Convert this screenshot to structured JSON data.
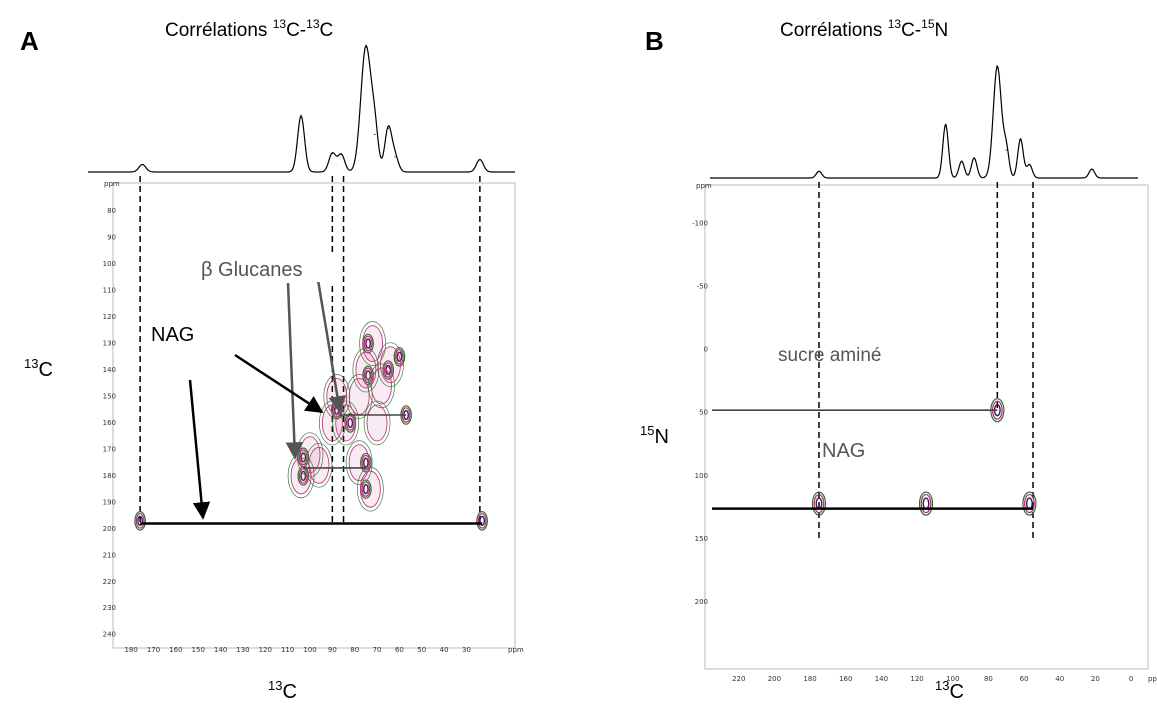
{
  "chart_data": [
    {
      "panel_letter": "A",
      "title": {
        "text": "Corrélations ",
        "sup1": "13",
        "mid": "C-",
        "sup2": "13",
        "end": "C"
      },
      "type": "heatmap",
      "xlabel": {
        "sup": "13",
        "text": "C"
      },
      "ylabel": {
        "sup": "13",
        "text": "C"
      },
      "xlim": [
        185,
        15
      ],
      "ylim": [
        72,
        242
      ],
      "x_unit": "ppm",
      "y_unit": "ppm",
      "xticks": [
        180,
        170,
        160,
        150,
        140,
        130,
        120,
        110,
        100,
        90,
        80,
        70,
        60,
        50,
        40,
        30
      ],
      "yticks": [
        80,
        90,
        100,
        110,
        120,
        130,
        140,
        150,
        160,
        170,
        180,
        190,
        200,
        210,
        220,
        230,
        240
      ],
      "projection_peaks": [
        {
          "ppm": 175,
          "height": 0.06
        },
        {
          "ppm": 104,
          "height": 0.45
        },
        {
          "ppm": 90,
          "height": 0.15
        },
        {
          "ppm": 86,
          "height": 0.14
        },
        {
          "ppm": 75,
          "height": 1.0
        },
        {
          "ppm": 71,
          "height": 0.3
        },
        {
          "ppm": 65,
          "height": 0.35
        },
        {
          "ppm": 62,
          "height": 0.12
        },
        {
          "ppm": 24,
          "height": 0.1
        }
      ],
      "cross_peaks": [
        {
          "x": 176,
          "y": 197
        },
        {
          "x": 23,
          "y": 197
        },
        {
          "x": 103,
          "y": 173
        },
        {
          "x": 103,
          "y": 180
        },
        {
          "x": 75,
          "y": 175
        },
        {
          "x": 75,
          "y": 185
        },
        {
          "x": 88,
          "y": 155
        },
        {
          "x": 82,
          "y": 160
        },
        {
          "x": 74,
          "y": 142
        },
        {
          "x": 74,
          "y": 130
        },
        {
          "x": 65,
          "y": 140
        },
        {
          "x": 60,
          "y": 135
        },
        {
          "x": 57,
          "y": 157
        }
      ],
      "connectors": [
        {
          "x": [
            176,
            23
          ],
          "y": 198,
          "weight": "bold"
        },
        {
          "x": [
            87,
            57
          ],
          "y": 157,
          "weight": "normal"
        },
        {
          "x": [
            103,
            75
          ],
          "y": 177,
          "weight": "normal"
        }
      ],
      "projection_guides": [
        176,
        90,
        85,
        24
      ],
      "annotations": [
        {
          "text": "β Glucanes"
        },
        {
          "text": "NAG"
        }
      ]
    },
    {
      "panel_letter": "B",
      "title": {
        "text": "Corrélations ",
        "sup1": "13",
        "mid": "C-",
        "sup2": "15",
        "end": "N"
      },
      "type": "heatmap",
      "xlabel": {
        "sup": "13",
        "text": "C"
      },
      "ylabel": {
        "sup": "15",
        "text": "N"
      },
      "xlim": [
        235,
        -5
      ],
      "ylim": [
        -125,
        250
      ],
      "x_unit": "ppm",
      "y_unit": "ppm",
      "xticks": [
        220,
        200,
        180,
        160,
        140,
        120,
        100,
        80,
        60,
        40,
        20,
        0
      ],
      "yticks": [
        -100,
        -50,
        0,
        50,
        100,
        150,
        200
      ],
      "projection_peaks": [
        {
          "ppm": 175,
          "height": 0.06
        },
        {
          "ppm": 104,
          "height": 0.48
        },
        {
          "ppm": 95,
          "height": 0.15
        },
        {
          "ppm": 88,
          "height": 0.18
        },
        {
          "ppm": 75,
          "height": 1.0
        },
        {
          "ppm": 70,
          "height": 0.25
        },
        {
          "ppm": 62,
          "height": 0.35
        },
        {
          "ppm": 57,
          "height": 0.12
        },
        {
          "ppm": 22,
          "height": 0.08
        }
      ],
      "cross_peaks": [
        {
          "x": 75,
          "y": 48
        },
        {
          "x": 175,
          "y": 122
        },
        {
          "x": 115,
          "y": 122
        },
        {
          "x": 57,
          "y": 122
        }
      ],
      "connectors": [
        {
          "x": [
            235,
            75
          ],
          "y": 48,
          "weight": "normal"
        },
        {
          "x": [
            235,
            55
          ],
          "y": 126,
          "weight": "bold"
        }
      ],
      "projection_guides": [
        175,
        75,
        55
      ],
      "annotations": [
        {
          "text": "sucre aminé"
        },
        {
          "text": "NAG"
        }
      ]
    }
  ]
}
